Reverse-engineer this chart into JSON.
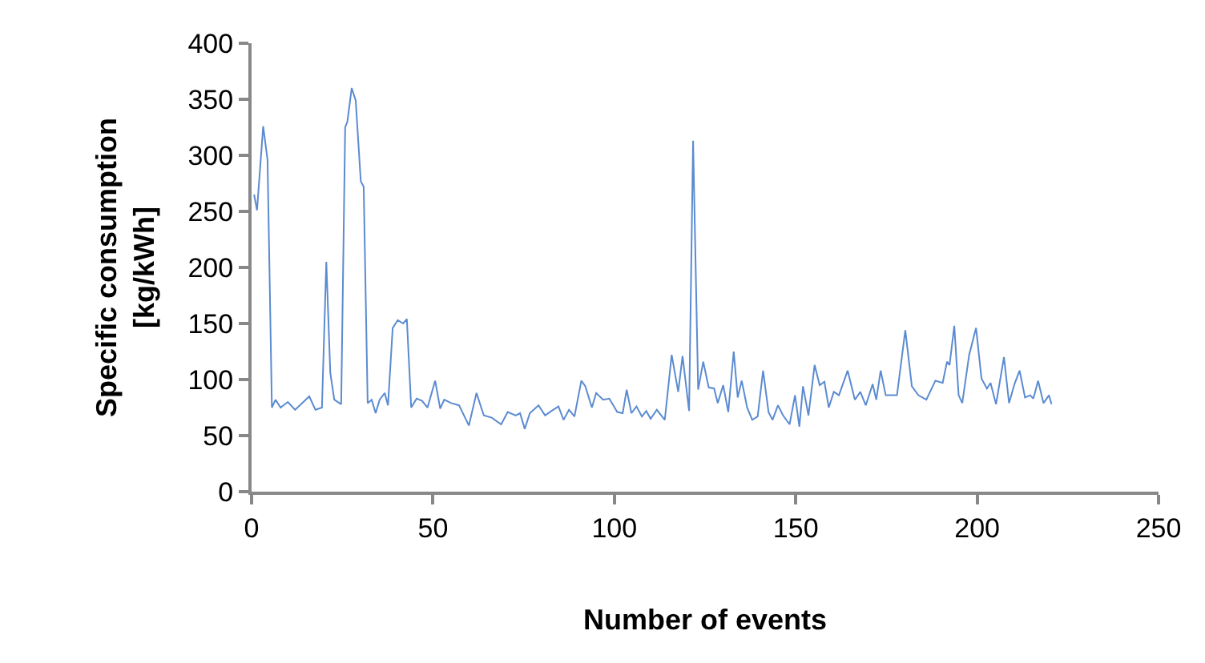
{
  "chart_data": {
    "type": "line",
    "xlabel": "Number of events",
    "ylabel": "Specific consumption\n[kg/kWh]",
    "xlim": [
      0,
      250
    ],
    "xticks": [
      0,
      50,
      100,
      150,
      200,
      250
    ],
    "ylim": [
      0,
      400
    ],
    "yticks": [
      0,
      50,
      100,
      150,
      200,
      250,
      300,
      350,
      400
    ],
    "grid": false,
    "legend": false,
    "marker": "none",
    "line_style": "solid",
    "series": [
      {
        "color": "#5b8bd0",
        "x": [
          0.7,
          1.5,
          3.2,
          4.4,
          5.6,
          6.6,
          8,
          10,
          12,
          15.9,
          17.6,
          19.4,
          20.6,
          21.7,
          22.8,
          24.7,
          25.8,
          26.4,
          27.6,
          28.7,
          30.1,
          30.9,
          32,
          33.1,
          34.2,
          35.3,
          36.7,
          37.6,
          38.9,
          40.3,
          41.8,
          42.8,
          44,
          45.5,
          47,
          48.5,
          50.6,
          52,
          53.1,
          55,
          57.2,
          59.9,
          62,
          64,
          66.2,
          68.8,
          70.6,
          72.8,
          74,
          75.3,
          76.7,
          79.1,
          80.9,
          82.7,
          84.6,
          86,
          87.5,
          89,
          90.9,
          92,
          93.8,
          95,
          96.9,
          98.6,
          100.8,
          102.3,
          103.4,
          104.7,
          106.1,
          107.6,
          108.8,
          110,
          111.7,
          113.9,
          115.8,
          117.6,
          118.8,
          120.6,
          121.7,
          123.1,
          124.5,
          126,
          127.5,
          128.5,
          130,
          131.4,
          132.9,
          134,
          135.1,
          136.6,
          138,
          139.5,
          141,
          142.5,
          143.6,
          145.1,
          146.5,
          148.3,
          149.8,
          151,
          152,
          153.5,
          155.2,
          156.6,
          157.9,
          159.1,
          160.5,
          161.9,
          164.3,
          166.3,
          167.8,
          169.3,
          171.2,
          172.2,
          173.4,
          174.8,
          177.9,
          180.2,
          182,
          183.8,
          186,
          188.5,
          190.5,
          191.7,
          192.4,
          193.7,
          194.9,
          195.9,
          197.8,
          199.7,
          201.2,
          202.7,
          203.7,
          205.2,
          207.4,
          208.8,
          210.3,
          211.7,
          213.2,
          214.6,
          215.5,
          216.8,
          218.3,
          219.8,
          220.5
        ],
        "values": [
          265,
          251,
          326,
          296,
          75,
          82,
          75,
          80,
          73,
          85,
          73,
          75,
          205,
          106,
          82,
          78,
          325,
          330,
          360,
          349,
          277,
          272,
          79,
          82,
          70,
          82,
          88,
          77,
          146,
          153,
          150,
          154,
          75,
          83,
          81,
          75,
          99,
          74,
          82,
          79,
          77,
          59,
          88,
          68,
          66,
          60,
          71,
          68,
          70,
          56,
          70,
          77,
          68,
          72,
          76,
          64,
          73,
          67,
          99,
          94,
          75,
          88,
          82,
          83,
          71,
          70,
          91,
          70,
          76,
          67,
          72,
          65,
          73,
          64,
          122,
          89,
          121,
          72,
          313,
          91,
          116,
          93,
          92,
          79,
          95,
          71,
          125,
          84,
          99,
          75,
          64,
          67,
          108,
          71,
          64,
          77,
          68,
          60,
          86,
          58,
          94,
          68,
          113,
          95,
          98,
          75,
          89,
          86,
          108,
          82,
          89,
          77,
          96,
          82,
          108,
          86,
          86,
          144,
          94,
          86,
          82,
          99,
          97,
          116,
          113,
          148,
          86,
          79,
          122,
          146,
          101,
          92,
          97,
          78,
          120,
          79,
          96,
          108,
          84,
          86,
          83,
          99,
          79,
          86,
          78
        ]
      }
    ]
  }
}
